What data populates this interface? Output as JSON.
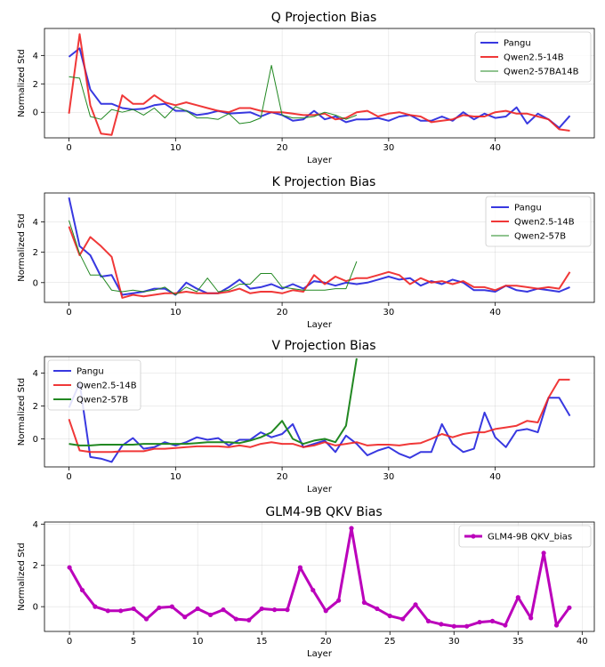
{
  "chart_data": [
    {
      "type": "line",
      "title": "Q Projection Bias",
      "xlabel": "Layer",
      "ylabel": "Normalized Std",
      "xlim": [
        -2.3,
        49.3
      ],
      "ylim": [
        -1.8,
        5.9
      ],
      "xticks": [
        0,
        10,
        20,
        30,
        40
      ],
      "yticks": [
        0,
        2,
        4
      ],
      "grid": true,
      "legend_position": "upper right",
      "series": [
        {
          "name": "Pangu",
          "color": "#2222dd",
          "width": 2,
          "alpha": 0.9,
          "values": [
            3.9,
            4.5,
            1.6,
            0.6,
            0.6,
            0.3,
            0.2,
            0.25,
            0.5,
            0.6,
            0.1,
            0.1,
            -0.2,
            -0.1,
            0.1,
            -0.1,
            -0.05,
            0.0,
            -0.3,
            0.0,
            -0.2,
            -0.6,
            -0.5,
            0.1,
            -0.5,
            -0.3,
            -0.7,
            -0.5,
            -0.5,
            -0.4,
            -0.6,
            -0.3,
            -0.2,
            -0.6,
            -0.6,
            -0.3,
            -0.6,
            0.0,
            -0.5,
            -0.1,
            -0.4,
            -0.3,
            0.35,
            -0.8,
            -0.1,
            -0.5,
            -1.1,
            -0.25
          ]
        },
        {
          "name": "Qwen2.5-14B",
          "color": "#ee2222",
          "width": 2,
          "alpha": 0.9,
          "values": [
            -0.1,
            5.5,
            0.5,
            -1.5,
            -1.6,
            1.2,
            0.6,
            0.6,
            1.2,
            0.7,
            0.5,
            0.7,
            0.5,
            0.3,
            0.1,
            0.0,
            0.3,
            0.3,
            0.1,
            0.0,
            0.0,
            -0.1,
            -0.2,
            -0.2,
            -0.1,
            -0.5,
            -0.4,
            0.0,
            0.1,
            -0.3,
            -0.1,
            0.0,
            -0.2,
            -0.3,
            -0.7,
            -0.6,
            -0.5,
            -0.2,
            -0.3,
            -0.3,
            0.0,
            0.1,
            -0.1,
            -0.1,
            -0.3,
            -0.5,
            -1.2,
            -1.3
          ]
        },
        {
          "name": "Qwen2-57BA14B",
          "color": "#228822",
          "width": 1,
          "alpha": 1.0,
          "values": [
            2.5,
            2.4,
            -0.3,
            -0.5,
            0.2,
            0.0,
            0.2,
            -0.2,
            0.3,
            -0.4,
            0.4,
            0.1,
            -0.4,
            -0.4,
            -0.5,
            -0.1,
            -0.8,
            -0.7,
            -0.4,
            3.3,
            -0.2,
            -0.4,
            -0.4,
            -0.3,
            0.0,
            -0.2,
            -0.5,
            -0.2
          ]
        }
      ]
    },
    {
      "type": "line",
      "title": "K Projection Bias",
      "xlabel": "Layer",
      "ylabel": "Normalized Std",
      "xlim": [
        -2.3,
        49.3
      ],
      "ylim": [
        -1.3,
        5.9
      ],
      "xticks": [
        0,
        10,
        20,
        30,
        40
      ],
      "yticks": [
        0,
        2,
        4
      ],
      "grid": true,
      "legend_position": "upper right",
      "series": [
        {
          "name": "Pangu",
          "color": "#2222dd",
          "width": 2,
          "alpha": 0.9,
          "values": [
            5.6,
            2.4,
            1.8,
            0.4,
            0.5,
            -0.8,
            -0.7,
            -0.6,
            -0.4,
            -0.4,
            -0.8,
            0.0,
            -0.4,
            -0.7,
            -0.7,
            -0.3,
            0.2,
            -0.4,
            -0.3,
            -0.1,
            -0.4,
            -0.1,
            -0.4,
            0.1,
            0.0,
            -0.2,
            0.0,
            -0.1,
            0.0,
            0.2,
            0.4,
            0.2,
            0.3,
            -0.2,
            0.1,
            -0.1,
            0.2,
            0.0,
            -0.5,
            -0.5,
            -0.6,
            -0.2,
            -0.5,
            -0.6,
            -0.4,
            -0.5,
            -0.6,
            -0.3
          ]
        },
        {
          "name": "Qwen2.5-14B",
          "color": "#ee2222",
          "width": 2,
          "alpha": 0.9,
          "values": [
            3.7,
            1.8,
            3.0,
            2.4,
            1.7,
            -1.0,
            -0.8,
            -0.9,
            -0.8,
            -0.7,
            -0.7,
            -0.6,
            -0.7,
            -0.7,
            -0.7,
            -0.6,
            -0.4,
            -0.7,
            -0.6,
            -0.6,
            -0.7,
            -0.5,
            -0.6,
            0.5,
            -0.1,
            0.4,
            0.1,
            0.3,
            0.3,
            0.5,
            0.7,
            0.5,
            -0.1,
            0.3,
            0.0,
            0.1,
            -0.1,
            0.1,
            -0.3,
            -0.3,
            -0.5,
            -0.2,
            -0.2,
            -0.3,
            -0.4,
            -0.3,
            -0.4,
            0.7
          ]
        },
        {
          "name": "Qwen2-57B",
          "color": "#228822",
          "width": 1,
          "alpha": 1.0,
          "values": [
            4.1,
            1.9,
            0.5,
            0.5,
            -0.5,
            -0.6,
            -0.5,
            -0.6,
            -0.5,
            -0.3,
            -0.8,
            -0.3,
            -0.6,
            0.3,
            -0.6,
            -0.5,
            -0.1,
            -0.1,
            0.6,
            0.6,
            -0.3,
            -0.4,
            -0.5,
            -0.5,
            -0.5,
            -0.4,
            -0.4,
            1.4
          ]
        }
      ]
    },
    {
      "type": "line",
      "title": "V Projection Bias",
      "xlabel": "Layer",
      "ylabel": "Normalized Std",
      "xlim": [
        -2.3,
        49.3
      ],
      "ylim": [
        -1.7,
        5.0
      ],
      "xticks": [
        0,
        10,
        20,
        30,
        40
      ],
      "yticks": [
        0,
        2,
        4
      ],
      "grid": true,
      "legend_position": "upper left",
      "series": [
        {
          "name": "Pangu",
          "color": "#2222dd",
          "width": 2,
          "alpha": 0.9,
          "values": [
            1.9,
            3.4,
            -1.1,
            -1.2,
            -1.4,
            -0.4,
            0.05,
            -0.6,
            -0.5,
            -0.2,
            -0.4,
            -0.2,
            0.1,
            -0.05,
            0.05,
            -0.4,
            -0.05,
            -0.05,
            0.4,
            0.1,
            0.3,
            0.9,
            -0.5,
            -0.3,
            -0.1,
            -0.8,
            0.2,
            -0.3,
            -1.0,
            -0.7,
            -0.5,
            -0.9,
            -1.15,
            -0.8,
            -0.8,
            0.9,
            -0.3,
            -0.8,
            -0.6,
            1.6,
            0.1,
            -0.5,
            0.5,
            0.6,
            0.4,
            2.5,
            2.5,
            1.4
          ]
        },
        {
          "name": "Qwen2.5-14B",
          "color": "#ee2222",
          "width": 2,
          "alpha": 0.9,
          "values": [
            1.2,
            -0.7,
            -0.8,
            -0.8,
            -0.8,
            -0.75,
            -0.75,
            -0.75,
            -0.6,
            -0.6,
            -0.55,
            -0.5,
            -0.45,
            -0.45,
            -0.45,
            -0.5,
            -0.4,
            -0.5,
            -0.3,
            -0.2,
            -0.3,
            -0.3,
            -0.5,
            -0.4,
            -0.2,
            -0.4,
            -0.3,
            -0.2,
            -0.4,
            -0.35,
            -0.35,
            -0.4,
            -0.3,
            -0.25,
            0.0,
            0.3,
            0.1,
            0.3,
            0.4,
            0.4,
            0.6,
            0.7,
            0.8,
            1.1,
            1.0,
            2.5,
            3.6,
            3.6
          ]
        },
        {
          "name": "Qwen2-57B",
          "color": "#228822",
          "width": 2,
          "alpha": 1.0,
          "values": [
            -0.3,
            -0.4,
            -0.4,
            -0.35,
            -0.35,
            -0.35,
            -0.35,
            -0.3,
            -0.3,
            -0.3,
            -0.3,
            -0.3,
            -0.25,
            -0.2,
            -0.2,
            -0.2,
            -0.25,
            -0.1,
            0.1,
            0.4,
            1.1,
            0.0,
            -0.3,
            -0.1,
            0.0,
            -0.2,
            0.8,
            4.9
          ]
        }
      ]
    },
    {
      "type": "line",
      "title": "GLM4-9B QKV Bias",
      "xlabel": "Layer",
      "ylabel": "Normalized Std",
      "xlim": [
        -1.95,
        40.95
      ],
      "ylim": [
        -1.2,
        4.1
      ],
      "xticks": [
        0,
        5,
        10,
        15,
        20,
        25,
        30,
        35,
        40
      ],
      "yticks": [
        0,
        2,
        4
      ],
      "grid": true,
      "legend_position": "upper right",
      "series": [
        {
          "name": "GLM4-9B QKV_bias",
          "color": "#bb00bb",
          "width": 3,
          "alpha": 1.0,
          "markers": true,
          "values": [
            1.9,
            0.8,
            0.0,
            -0.2,
            -0.2,
            -0.1,
            -0.6,
            -0.05,
            0.0,
            -0.5,
            -0.1,
            -0.4,
            -0.15,
            -0.6,
            -0.65,
            -0.1,
            -0.15,
            -0.15,
            1.9,
            0.8,
            -0.2,
            0.3,
            3.8,
            0.2,
            -0.1,
            -0.45,
            -0.6,
            0.1,
            -0.7,
            -0.85,
            -0.95,
            -0.95,
            -0.75,
            -0.7,
            -0.9,
            0.45,
            -0.55,
            2.6,
            -0.9,
            -0.05
          ]
        }
      ]
    }
  ]
}
